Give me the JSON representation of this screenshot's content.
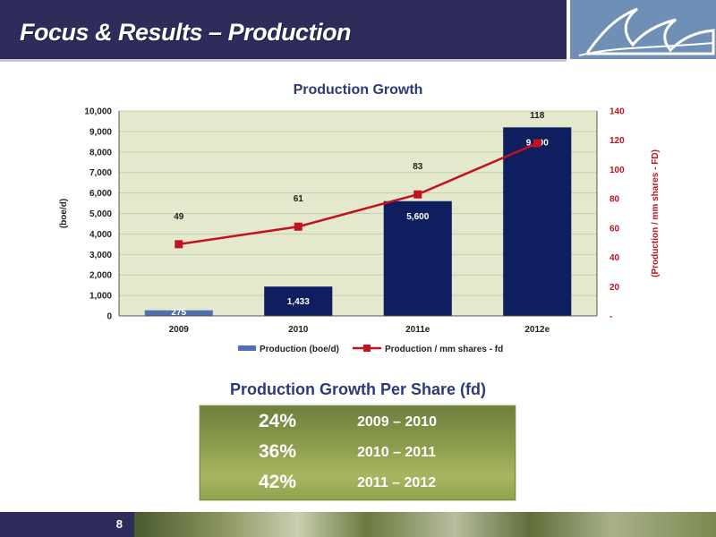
{
  "header": {
    "title": "Focus & Results – Production"
  },
  "chart_data": {
    "type": "bar",
    "title": "Production Growth",
    "categories": [
      "2009",
      "2010",
      "2011e",
      "2012e"
    ],
    "series": [
      {
        "name": "Production (boe/d)",
        "kind": "bar",
        "axis": "left",
        "values": [
          275,
          1433,
          5600,
          9200
        ],
        "labels": [
          "275",
          "1,433",
          "5,600",
          "9,200"
        ]
      },
      {
        "name": "Production / mm shares - fd",
        "kind": "line",
        "axis": "right",
        "values": [
          49,
          61,
          83,
          118
        ],
        "labels": [
          "49",
          "61",
          "83",
          "118"
        ]
      }
    ],
    "ylabel": "(boe/d)",
    "y2label": "(Production / mm shares - FD)",
    "ylim": [
      0,
      10000
    ],
    "y2lim": [
      0,
      140
    ],
    "yticks": [
      "0",
      "1,000",
      "2,000",
      "3,000",
      "4,000",
      "5,000",
      "6,000",
      "7,000",
      "8,000",
      "9,000",
      "10,000"
    ],
    "y2ticks": [
      "-",
      "20",
      "40",
      "60",
      "80",
      "100",
      "120",
      "140"
    ],
    "grid": true,
    "legend": "bottom",
    "colors": {
      "bar": "#0f1e5e",
      "bar_first": "#4f6fae",
      "line": "#c0121f",
      "plot_bg": "#e4e8cc"
    }
  },
  "growth": {
    "title": "Production Growth Per Share (fd)",
    "rows": [
      {
        "pct": "24%",
        "range": "2009 – 2010"
      },
      {
        "pct": "36%",
        "range": "2010 – 2011"
      },
      {
        "pct": "42%",
        "range": "2011 – 2012"
      }
    ]
  },
  "footer": {
    "page": "8"
  }
}
